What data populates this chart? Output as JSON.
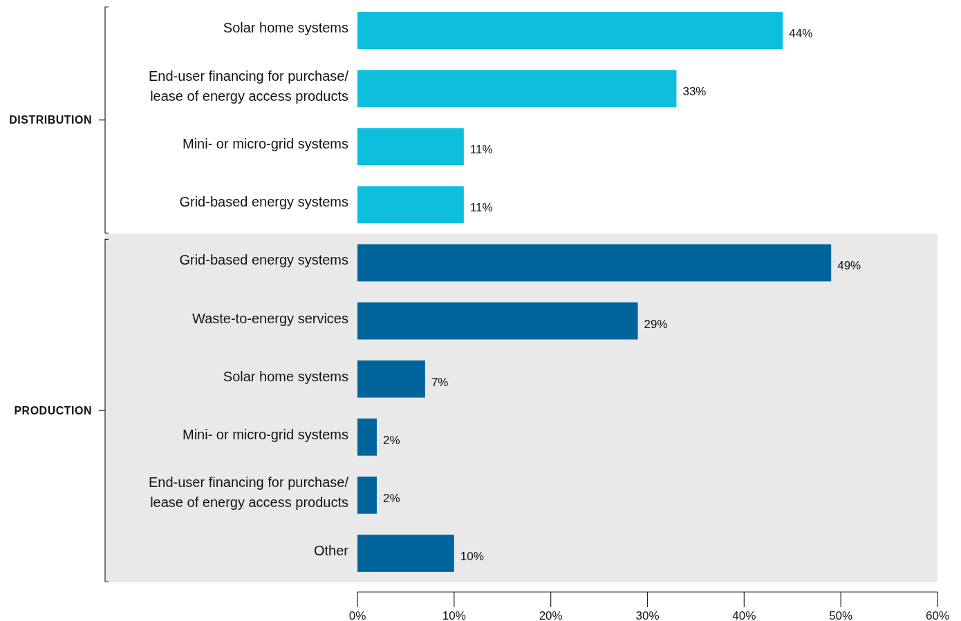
{
  "chart_data": {
    "type": "bar",
    "orientation": "horizontal",
    "categories": [
      "Solar home systems",
      "End-user financing for purchase/\nlease of energy access products",
      "Mini- or micro-grid systems",
      "Grid-based energy systems",
      "Grid-based energy systems",
      "Waste-to-energy services",
      "Solar home systems",
      "Mini- or micro-grid systems",
      "End-user financing for purchase/\nlease of energy access products",
      "Other"
    ],
    "series": [
      {
        "color": "#0dbfdd",
        "values": [
          44,
          33,
          11,
          11,
          null,
          null,
          null,
          null,
          null,
          null
        ],
        "value_labels": [
          "44%",
          "33%",
          "11%",
          "11%",
          null,
          null,
          null,
          null,
          null,
          null
        ]
      },
      {
        "color": "#00649c",
        "values": [
          null,
          null,
          null,
          null,
          49,
          29,
          7,
          2,
          2,
          10
        ],
        "value_labels": [
          null,
          null,
          null,
          null,
          "49%",
          "29%",
          "7%",
          "2%",
          "2%",
          "10%"
        ]
      }
    ],
    "xlim": [
      0,
      60
    ],
    "xticks": [
      {
        "value": 0,
        "label": "0%"
      },
      {
        "value": 10,
        "label": "10%"
      },
      {
        "value": 20,
        "label": "20%"
      },
      {
        "value": 30,
        "label": "30%"
      },
      {
        "value": 40,
        "label": "40%"
      },
      {
        "value": 50,
        "label": "50%"
      },
      {
        "value": 60,
        "label": "60%"
      }
    ],
    "bands": [
      {
        "axis": "y",
        "from": "Grid-based energy systems",
        "to": "Other",
        "color": "#e9e9e9"
      }
    ],
    "annotations": [
      "DISTRIBUTION",
      "PRODUCTION"
    ],
    "grid": false
  }
}
